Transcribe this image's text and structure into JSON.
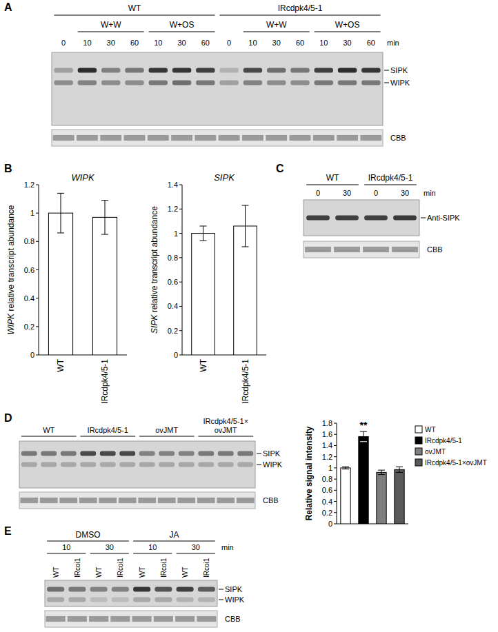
{
  "panel_labels": [
    "A",
    "B",
    "C",
    "D",
    "E"
  ],
  "blots": {
    "A": {
      "unit": "min",
      "bands": [
        "SIPK",
        "WIPK"
      ],
      "loading": "CBB",
      "genotypes": [
        {
          "label": "WT",
          "lanes": [
            {
              "time": 0,
              "sipk": 0.35,
              "wipk": 0.45
            }
          ],
          "treatments": [
            {
              "label": "W+W",
              "lanes": [
                {
                  "time": 10,
                  "sipk": 0.95,
                  "wipk": 0.5
                },
                {
                  "time": 30,
                  "sipk": 0.5,
                  "wipk": 0.45
                },
                {
                  "time": 60,
                  "sipk": 0.55,
                  "wipk": 0.45
                }
              ]
            },
            {
              "label": "W+OS",
              "lanes": [
                {
                  "time": 10,
                  "sipk": 0.9,
                  "wipk": 0.55
                },
                {
                  "time": 30,
                  "sipk": 0.9,
                  "wipk": 0.6
                },
                {
                  "time": 60,
                  "sipk": 0.85,
                  "wipk": 0.55
                }
              ]
            }
          ]
        },
        {
          "label": "IRcdpk4/5-1",
          "lanes": [
            {
              "time": 0,
              "sipk": 0.25,
              "wipk": 0.35
            }
          ],
          "treatments": [
            {
              "label": "W+W",
              "lanes": [
                {
                  "time": 10,
                  "sipk": 0.8,
                  "wipk": 0.5
                },
                {
                  "time": 30,
                  "sipk": 0.6,
                  "wipk": 0.45
                },
                {
                  "time": 60,
                  "sipk": 0.55,
                  "wipk": 0.45
                }
              ]
            },
            {
              "label": "W+OS",
              "lanes": [
                {
                  "time": 10,
                  "sipk": 0.85,
                  "wipk": 0.55
                },
                {
                  "time": 30,
                  "sipk": 0.95,
                  "wipk": 0.55
                },
                {
                  "time": 60,
                  "sipk": 0.9,
                  "wipk": 0.55
                }
              ]
            }
          ]
        }
      ]
    },
    "C": {
      "unit": "min",
      "antibody": "Anti-SIPK",
      "loading": "CBB",
      "genotypes": [
        {
          "label": "WT",
          "lanes": [
            {
              "time": 0,
              "sipk": 0.85
            },
            {
              "time": 30,
              "sipk": 0.85
            }
          ]
        },
        {
          "label": "IRcdpk4/5-1",
          "lanes": [
            {
              "time": 0,
              "sipk": 0.85
            },
            {
              "time": 30,
              "sipk": 0.88
            }
          ]
        }
      ]
    },
    "D": {
      "bands": [
        "SIPK",
        "WIPK"
      ],
      "loading": "CBB",
      "genotypes": [
        {
          "label": "WT",
          "lanes": [
            {
              "sipk": 0.55,
              "wipk": 0.3
            },
            {
              "sipk": 0.55,
              "wipk": 0.3
            },
            {
              "sipk": 0.55,
              "wipk": 0.3
            }
          ]
        },
        {
          "label": "IRcdpk4/5-1",
          "lanes": [
            {
              "sipk": 0.8,
              "wipk": 0.3
            },
            {
              "sipk": 0.8,
              "wipk": 0.3
            },
            {
              "sipk": 0.8,
              "wipk": 0.3
            }
          ]
        },
        {
          "label": "ovJMT",
          "lanes": [
            {
              "sipk": 0.5,
              "wipk": 0.3
            },
            {
              "sipk": 0.5,
              "wipk": 0.3
            },
            {
              "sipk": 0.5,
              "wipk": 0.3
            }
          ]
        },
        {
          "label": "IRcdpk4/5-1×\novJMT",
          "lanes": [
            {
              "sipk": 0.55,
              "wipk": 0.3
            },
            {
              "sipk": 0.55,
              "wipk": 0.3
            },
            {
              "sipk": 0.55,
              "wipk": 0.3
            }
          ]
        }
      ]
    },
    "E": {
      "unit": "min",
      "bands": [
        "SIPK",
        "WIPK"
      ],
      "loading": "CBB",
      "treatments": [
        {
          "label": "DMSO",
          "times": [
            {
              "time": 10,
              "lanes": [
                {
                  "genotype": "WT",
                  "sipk": 0.6,
                  "wipk": 0.3
                },
                {
                  "genotype": "IRcoi1",
                  "sipk": 0.55,
                  "wipk": 0.3
                }
              ]
            },
            {
              "time": 30,
              "lanes": [
                {
                  "genotype": "WT",
                  "sipk": 0.5,
                  "wipk": 0.2
                },
                {
                  "genotype": "IRcoi1",
                  "sipk": 0.5,
                  "wipk": 0.2
                }
              ]
            }
          ]
        },
        {
          "label": "JA",
          "times": [
            {
              "time": 10,
              "lanes": [
                {
                  "genotype": "WT",
                  "sipk": 0.9,
                  "wipk": 0.3
                },
                {
                  "genotype": "IRcoi1",
                  "sipk": 0.75,
                  "wipk": 0.3
                }
              ]
            },
            {
              "time": 30,
              "lanes": [
                {
                  "genotype": "WT",
                  "sipk": 0.85,
                  "wipk": 0.25
                },
                {
                  "genotype": "IRcoi1",
                  "sipk": 0.7,
                  "wipk": 0.25
                }
              ]
            }
          ]
        }
      ]
    }
  },
  "chart_data": [
    {
      "type": "bar",
      "title": "WIPK",
      "y_label": "WIPK relative transcript abundance",
      "categories": [
        "WT",
        "IRcdpk4/5-1"
      ],
      "values": [
        1.0,
        0.97
      ],
      "errors": [
        0.14,
        0.12
      ],
      "color": "#ffffff",
      "ylim": [
        0,
        1.2
      ],
      "yticks": [
        0,
        0.2,
        0.4,
        0.6,
        0.8,
        1,
        1.2
      ]
    },
    {
      "type": "bar",
      "title": "SIPK",
      "y_label": "SIPK relative transcript abundance",
      "categories": [
        "WT",
        "IRcdpk4/5-1"
      ],
      "values": [
        1.0,
        1.06
      ],
      "errors": [
        0.06,
        0.17
      ],
      "color": "#ffffff",
      "ylim": [
        0,
        1.4
      ],
      "yticks": [
        0,
        0.2,
        0.4,
        0.6,
        0.8,
        1,
        1.2,
        1.4
      ]
    },
    {
      "type": "bar",
      "y_label": "Relative signal intensity",
      "categories": [
        "WT",
        "IRcdpk4/5-1",
        "ovJMT",
        "IRcdpk4/5-1×ovJMT"
      ],
      "values": [
        1.0,
        1.56,
        0.92,
        0.97
      ],
      "errors": [
        0.02,
        0.09,
        0.04,
        0.05
      ],
      "colors": [
        "#ffffff",
        "#000000",
        "#7f7f7f",
        "#595959"
      ],
      "ylim": [
        0,
        1.8
      ],
      "yticks": [
        0,
        0.2,
        0.4,
        0.6,
        0.8,
        1,
        1.2,
        1.4,
        1.6,
        1.8
      ],
      "legend": "right",
      "tick_labels": "y",
      "annotations": [
        {
          "text": "**",
          "index": 1
        }
      ]
    }
  ]
}
